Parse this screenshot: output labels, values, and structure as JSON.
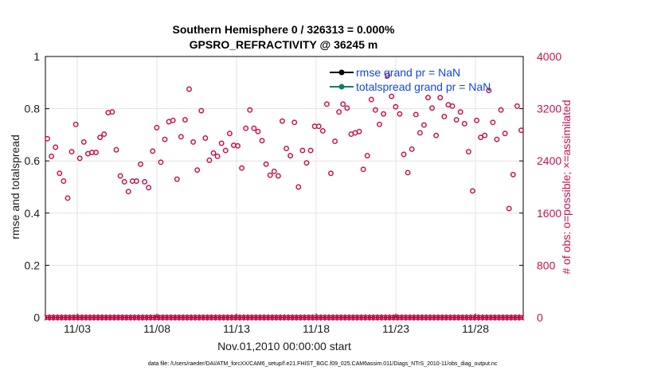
{
  "chart_data": {
    "type": "scatter",
    "title": "Southern Hemisphere 0 / 326313 = 0.000%",
    "subtitle": "GPSRO_REFRACTIVITY @ 36245 m",
    "xlabel": "Nov.01,2010 00:00:00 start",
    "ylabel_left": "rmse and totalspread",
    "ylabel_right": "# of obs: o=possible; ×=assimilated",
    "x_ticks": [
      "11/03",
      "11/08",
      "11/13",
      "11/18",
      "11/23",
      "11/28"
    ],
    "x_tick_days": [
      3,
      8,
      13,
      18,
      23,
      28
    ],
    "xlim": [
      1,
      31
    ],
    "ylim_left": [
      0,
      1
    ],
    "ylim_right": [
      0,
      4000
    ],
    "left_ticks": [
      "0",
      "0.2",
      "0.4",
      "0.6",
      "0.8",
      "1"
    ],
    "right_ticks": [
      "0",
      "800",
      "1600",
      "2400",
      "3200",
      "4000"
    ],
    "colors": {
      "obs": "#c8104f",
      "rmse": "#000000",
      "spread": "#0d7d6e",
      "legend_text": "#1446e0"
    },
    "series": [
      {
        "name": "rmse grand pr = NaN",
        "values": []
      },
      {
        "name": "totalspread grand pr = NaN",
        "values": []
      }
    ],
    "possible_obs": [
      2740,
      2470,
      2610,
      2210,
      2090,
      1830,
      2540,
      2960,
      2440,
      2690,
      2510,
      2530,
      2530,
      2760,
      2810,
      3140,
      3150,
      2570,
      2170,
      2080,
      1930,
      2090,
      2090,
      2350,
      2080,
      1990,
      2550,
      2910,
      2380,
      2730,
      3000,
      3020,
      2120,
      2770,
      3030,
      3500,
      2690,
      2260,
      3170,
      2750,
      2410,
      2520,
      2470,
      2670,
      2560,
      2820,
      2640,
      2630,
      2290,
      2900,
      3180,
      2900,
      2850,
      2710,
      2350,
      2180,
      2240,
      2170,
      3010,
      2590,
      2480,
      2990,
      2000,
      2560,
      2370,
      2560,
      2930,
      2930,
      2860,
      3270,
      2210,
      2700,
      3150,
      3270,
      3210,
      2810,
      2830,
      2850,
      2270,
      2480,
      3340,
      3180,
      2960,
      3120,
      3710,
      3390,
      3230,
      3120,
      2500,
      2220,
      2580,
      3110,
      2830,
      2950,
      3370,
      3210,
      2790,
      3370,
      3080,
      3260,
      3240,
      3030,
      3150,
      2970,
      2540,
      1940,
      3020,
      2760,
      2790,
      3480,
      2990,
      2730,
      3180,
      2820,
      1670,
      2190,
      3240,
      2870
    ],
    "assimilated_obs": 0
  },
  "footer": "data file: /Users/raeder/DAI/ATM_forcXX/CAM6_setup/f.e21.FHIST_BGC.f09_025.CAM6assim.011/Diags_NTrS_2010-11/obs_diag_output.nc"
}
